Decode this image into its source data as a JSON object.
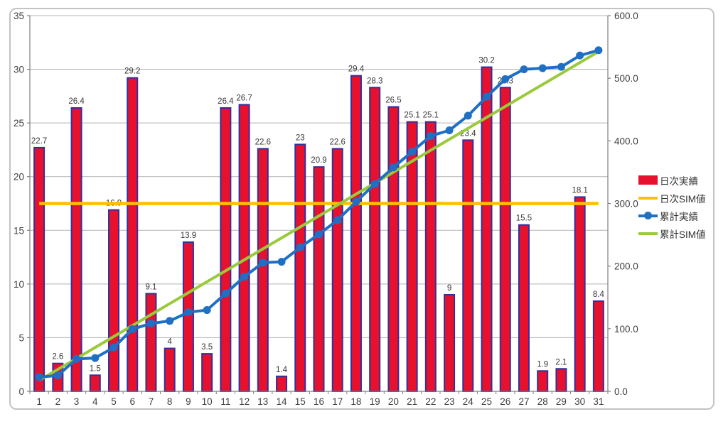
{
  "chart_data": {
    "type": "bar",
    "combo": "bar+line, dual axis",
    "title": "",
    "x_categories": [
      "1",
      "2",
      "3",
      "4",
      "5",
      "6",
      "7",
      "8",
      "9",
      "10",
      "11",
      "12",
      "13",
      "14",
      "15",
      "16",
      "17",
      "18",
      "19",
      "20",
      "21",
      "22",
      "23",
      "24",
      "25",
      "26",
      "27",
      "28",
      "29",
      "30",
      "31"
    ],
    "left_axis": {
      "min": 0,
      "max": 35,
      "step": 5,
      "tick_labels": [
        "35",
        "30",
        "25",
        "20",
        "15",
        "10",
        "5",
        "0"
      ]
    },
    "right_axis": {
      "min": 0,
      "max": 600,
      "step": 100,
      "tick_labels": [
        "600.0",
        "500.0",
        "400.0",
        "300.0",
        "200.0",
        "100.0",
        "0.0"
      ]
    },
    "series": [
      {
        "name": "日次実績",
        "type": "bar",
        "axis": "left",
        "color": "#e8112d",
        "border_color": "#32309c",
        "values": [
          22.7,
          2.6,
          26.4,
          1.5,
          16.9,
          29.2,
          9.1,
          4,
          13.9,
          3.5,
          26.4,
          26.7,
          22.6,
          1.4,
          23,
          20.9,
          22.6,
          29.4,
          28.3,
          26.5,
          25.1,
          25.1,
          9,
          23.4,
          30.2,
          28.3,
          15.5,
          1.9,
          2.1,
          18.1,
          8.4
        ]
      },
      {
        "name": "日次SIM値",
        "type": "line",
        "axis": "left",
        "color": "#ffc000",
        "constant_value": 17.5
      },
      {
        "name": "累計実績",
        "type": "line-marker",
        "axis": "right",
        "color": "#1f6fc5",
        "values": [
          22.7,
          25.3,
          51.7,
          53.2,
          70.1,
          99.3,
          108.4,
          112.4,
          126.3,
          129.8,
          156.2,
          182.9,
          205.5,
          206.9,
          229.9,
          250.8,
          273.4,
          302.8,
          331.1,
          357.6,
          382.7,
          407.8,
          416.8,
          440.2,
          470.4,
          498.7,
          514.2,
          516.1,
          518.2,
          536.3,
          544.7
        ]
      },
      {
        "name": "累計SIM値",
        "type": "line",
        "axis": "right",
        "color": "#9aca3b",
        "values": [
          17.5,
          35,
          52.5,
          70,
          87.5,
          105,
          122.5,
          140,
          157.5,
          175,
          192.5,
          210,
          227.5,
          245,
          262.5,
          280,
          297.5,
          315,
          332.5,
          350,
          367.5,
          385,
          402.5,
          420,
          437.5,
          455,
          472.5,
          490,
          507.5,
          525,
          542.5
        ]
      }
    ],
    "legend": {
      "position": "right",
      "items": [
        {
          "label": "日次実績"
        },
        {
          "label": "日次SIM値"
        },
        {
          "label": "累計実績"
        },
        {
          "label": "累計SIM値"
        }
      ]
    },
    "grid": true,
    "grid_color": "#b3b3b3",
    "axis_color": "#808080",
    "text_color": "#3f3f3f",
    "label_color": "#383838",
    "frame_color": "#c3c3c3"
  }
}
